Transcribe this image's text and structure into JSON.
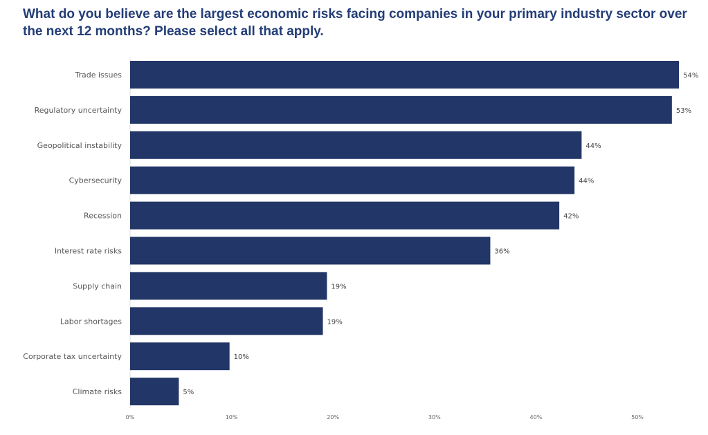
{
  "chart_data": {
    "type": "bar",
    "orientation": "horizontal",
    "title": "What do you believe are the largest economic risks facing companies in your primary industry sector over the next 12 months? Please select all that apply.",
    "categories": [
      "Trade issues",
      "Regulatory uncertainty",
      "Geopolitical instability",
      "Cybersecurity",
      "Recession",
      "Interest rate risks",
      "Supply chain",
      "Labor shortages",
      "Corporate tax uncertainty",
      "Climate risks"
    ],
    "values": [
      54.1,
      53.4,
      44.5,
      43.8,
      42.3,
      35.5,
      19.4,
      19.0,
      9.8,
      4.8
    ],
    "data_labels": [
      "54%",
      "53%",
      "44%",
      "44%",
      "42%",
      "36%",
      "19%",
      "19%",
      "10%",
      "5%"
    ],
    "xticks": [
      "0%",
      "10%",
      "20%",
      "30%",
      "40%",
      "50%"
    ],
    "xtick_values": [
      0,
      10,
      20,
      30,
      40,
      50
    ],
    "xlim": [
      0,
      57
    ],
    "xlabel": "",
    "ylabel": "",
    "grid": false,
    "bar_color": "#223667"
  }
}
